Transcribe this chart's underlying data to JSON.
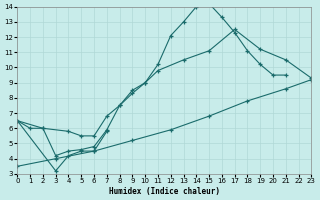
{
  "bg_color": "#c8ecea",
  "grid_color": "#b0d8d6",
  "line_color": "#1a6b6b",
  "xlabel": "Humidex (Indice chaleur)",
  "xlim": [
    0,
    23
  ],
  "ylim": [
    3,
    14
  ],
  "xticks": [
    0,
    1,
    2,
    3,
    4,
    5,
    6,
    7,
    8,
    9,
    10,
    11,
    12,
    13,
    14,
    15,
    16,
    17,
    18,
    19,
    20,
    21,
    22,
    23
  ],
  "yticks": [
    3,
    4,
    5,
    6,
    7,
    8,
    9,
    10,
    11,
    12,
    13,
    14
  ],
  "curve1_x": [
    0,
    1,
    2,
    3,
    4,
    5,
    6,
    7,
    8,
    9,
    10,
    11,
    12,
    13,
    14,
    15,
    16,
    17,
    18,
    19,
    20,
    21
  ],
  "curve1_y": [
    6.5,
    6.0,
    6.0,
    4.2,
    4.5,
    4.6,
    4.8,
    5.9,
    7.5,
    8.3,
    9.0,
    10.2,
    12.1,
    13.0,
    14.0,
    14.2,
    13.3,
    12.3,
    11.1,
    10.2,
    9.5,
    9.5
  ],
  "curve2_x": [
    0,
    3,
    4,
    5,
    6,
    7
  ],
  "curve2_y": [
    6.5,
    3.2,
    4.2,
    4.5,
    4.5,
    5.8
  ],
  "curve3_x": [
    0,
    2,
    4,
    5,
    6,
    7,
    8,
    9,
    10,
    11,
    13,
    15,
    17,
    19,
    21,
    23
  ],
  "curve3_y": [
    6.5,
    6.0,
    5.8,
    5.5,
    5.5,
    6.8,
    7.5,
    8.5,
    9.0,
    9.8,
    10.5,
    11.1,
    12.5,
    11.2,
    10.5,
    9.3
  ],
  "curve4_x": [
    0,
    3,
    6,
    9,
    12,
    15,
    18,
    21,
    23
  ],
  "curve4_y": [
    3.5,
    4.0,
    4.5,
    5.2,
    5.9,
    6.8,
    7.8,
    8.6,
    9.2
  ]
}
